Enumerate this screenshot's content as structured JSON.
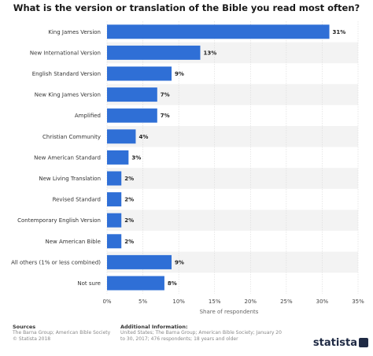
{
  "colors": {
    "bar": "#2f6fd6",
    "stripe": "#f3f3f3"
  },
  "chart_data": {
    "type": "bar",
    "orientation": "horizontal",
    "title": "What is the version or translation of the Bible you read most often?",
    "xlabel": "Share of respondents",
    "xlim": [
      0,
      35
    ],
    "xticks": [
      "0%",
      "5%",
      "10%",
      "15%",
      "20%",
      "25%",
      "30%",
      "35%"
    ],
    "grid": true,
    "categories": [
      "King James Version",
      "New International Version",
      "English Standard Version",
      "New King James Version",
      "Amplified",
      "Christian Community",
      "New American Standard",
      "New Living Translation",
      "Revised Standard",
      "Contemporary English Version",
      "New American Bible",
      "All others (1% or less combined)",
      "Not sure"
    ],
    "values": [
      31,
      13,
      9,
      7,
      7,
      4,
      3,
      2,
      2,
      2,
      2,
      9,
      8
    ],
    "value_labels": [
      "31%",
      "13%",
      "9%",
      "7%",
      "7%",
      "4%",
      "3%",
      "2%",
      "2%",
      "2%",
      "2%",
      "9%",
      "8%"
    ]
  },
  "footer": {
    "sources_label": "Sources",
    "sources_lines": [
      "The Barna Group; American Bible Society",
      "© Statista 2018"
    ],
    "info_label": "Additional Information:",
    "info_lines": [
      "United States; The Barna Group; American Bible Society; January 20",
      "to 30, 2017; 476 respondents; 18 years and older"
    ],
    "logo": "statista"
  }
}
